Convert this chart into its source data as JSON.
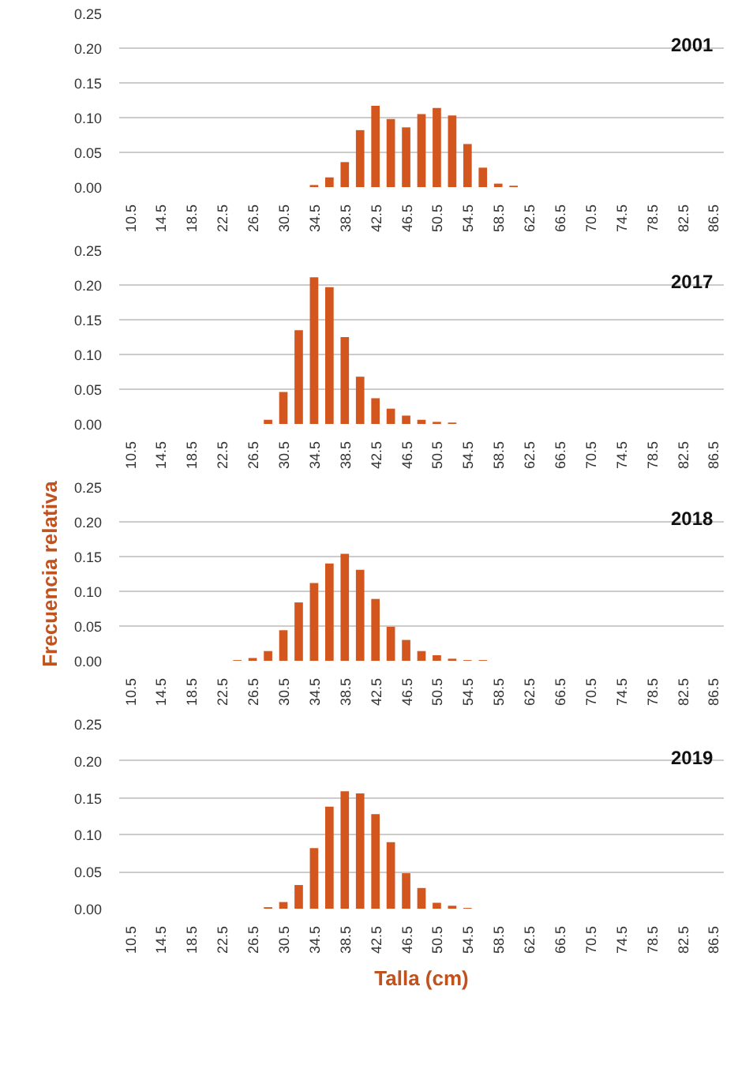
{
  "chart_data": [
    {
      "type": "bar",
      "annotations": [
        "2001"
      ],
      "categories": [
        "10.5",
        null,
        "14.5",
        null,
        "18.5",
        null,
        "22.5",
        null,
        "26.5",
        null,
        "30.5",
        null,
        "34.5",
        null,
        "38.5",
        null,
        "42.5",
        null,
        "46.5",
        null,
        "50.5",
        null,
        "54.5",
        null,
        "58.5",
        null,
        "62.5",
        null,
        "66.5",
        null,
        "70.5",
        null,
        "74.5",
        null,
        "78.5",
        null,
        "82.5",
        null,
        "86.5"
      ],
      "series": [
        {
          "color": "#d4561f",
          "values": [
            null,
            null,
            null,
            null,
            null,
            null,
            null,
            null,
            null,
            null,
            null,
            null,
            0.003,
            0.014,
            0.036,
            0.082,
            0.117,
            0.098,
            0.086,
            0.105,
            0.114,
            0.103,
            0.062,
            0.028,
            0.005,
            0.002,
            null,
            null,
            null,
            null,
            null,
            null,
            null,
            null,
            null,
            null,
            null,
            null,
            null
          ]
        }
      ],
      "ylim": [
        0,
        0.25
      ],
      "yticks": [
        {
          "value": 0,
          "label": "0.00"
        },
        {
          "value": 0.05,
          "label": "0.05"
        },
        {
          "value": 0.1,
          "label": "0.10"
        },
        {
          "value": 0.15,
          "label": "0.15"
        },
        {
          "value": 0.2,
          "label": "0.20"
        },
        {
          "value": 0.25,
          "label": "0.25"
        }
      ],
      "grid": "y"
    },
    {
      "type": "bar",
      "annotations": [
        "2017"
      ],
      "categories": [
        "10.5",
        null,
        "14.5",
        null,
        "18.5",
        null,
        "22.5",
        null,
        "26.5",
        null,
        "30.5",
        null,
        "34.5",
        null,
        "38.5",
        null,
        "42.5",
        null,
        "46.5",
        null,
        "50.5",
        null,
        "54.5",
        null,
        "58.5",
        null,
        "62.5",
        null,
        "66.5",
        null,
        "70.5",
        null,
        "74.5",
        null,
        "78.5",
        null,
        "82.5",
        null,
        "86.5"
      ],
      "series": [
        {
          "color": "#d4561f",
          "values": [
            null,
            null,
            null,
            null,
            null,
            null,
            null,
            null,
            null,
            0.006,
            0.046,
            0.135,
            0.211,
            0.197,
            0.125,
            0.068,
            0.037,
            0.022,
            0.012,
            0.006,
            0.003,
            0.002,
            null,
            null,
            null,
            null,
            null,
            null,
            null,
            null,
            null,
            null,
            null,
            null,
            null,
            null,
            null,
            null,
            null
          ]
        }
      ],
      "ylim": [
        0,
        0.25
      ],
      "yticks": [
        {
          "value": 0,
          "label": "0.00"
        },
        {
          "value": 0.05,
          "label": "0.05"
        },
        {
          "value": 0.1,
          "label": "0.10"
        },
        {
          "value": 0.15,
          "label": "0.15"
        },
        {
          "value": 0.2,
          "label": "0.20"
        },
        {
          "value": 0.25,
          "label": "0.25"
        }
      ],
      "grid": "y"
    },
    {
      "type": "bar",
      "annotations": [
        "2018"
      ],
      "ylabel": "Frecuencia relativa",
      "categories": [
        "10.5",
        null,
        "14.5",
        null,
        "18.5",
        null,
        "22.5",
        null,
        "26.5",
        null,
        "30.5",
        null,
        "34.5",
        null,
        "38.5",
        null,
        "42.5",
        null,
        "46.5",
        null,
        "50.5",
        null,
        "54.5",
        null,
        "58.5",
        null,
        "62.5",
        null,
        "66.5",
        null,
        "70.5",
        null,
        "74.5",
        null,
        "78.5",
        null,
        "82.5",
        null,
        "86.5"
      ],
      "series": [
        {
          "color": "#d4561f",
          "values": [
            null,
            null,
            null,
            null,
            null,
            null,
            null,
            0.001,
            0.004,
            0.014,
            0.044,
            0.084,
            0.112,
            0.14,
            0.154,
            0.131,
            0.089,
            0.049,
            0.03,
            0.014,
            0.008,
            0.003,
            0.001,
            0.001,
            null,
            null,
            null,
            null,
            null,
            null,
            null,
            null,
            null,
            null,
            null,
            null,
            null,
            null,
            null
          ]
        }
      ],
      "ylim": [
        0,
        0.25
      ],
      "yticks": [
        {
          "value": 0,
          "label": "0.00"
        },
        {
          "value": 0.05,
          "label": "0.05"
        },
        {
          "value": 0.1,
          "label": "0.10"
        },
        {
          "value": 0.15,
          "label": "0.15"
        },
        {
          "value": 0.2,
          "label": "0.20"
        },
        {
          "value": 0.25,
          "label": "0.25"
        }
      ],
      "grid": "y"
    },
    {
      "type": "bar",
      "annotations": [
        "2019"
      ],
      "xlabel": "Talla (cm)",
      "categories": [
        "10.5",
        null,
        "14.5",
        null,
        "18.5",
        null,
        "22.5",
        null,
        "26.5",
        null,
        "30.5",
        null,
        "34.5",
        null,
        "38.5",
        null,
        "42.5",
        null,
        "46.5",
        null,
        "50.5",
        null,
        "54.5",
        null,
        "58.5",
        null,
        "62.5",
        null,
        "66.5",
        null,
        "70.5",
        null,
        "74.5",
        null,
        "78.5",
        null,
        "82.5",
        null,
        "86.5"
      ],
      "series": [
        {
          "color": "#d4561f",
          "values": [
            null,
            null,
            null,
            null,
            null,
            null,
            null,
            null,
            null,
            0.002,
            0.009,
            0.032,
            0.082,
            0.138,
            0.159,
            0.156,
            0.128,
            0.09,
            0.048,
            0.028,
            0.008,
            0.004,
            0.001,
            null,
            null,
            null,
            null,
            null,
            null,
            null,
            null,
            null,
            null,
            null,
            null,
            null,
            null,
            null,
            null
          ]
        }
      ],
      "ylim": [
        0,
        0.25
      ],
      "yticks": [
        {
          "value": 0,
          "label": "0.00"
        },
        {
          "value": 0.05,
          "label": "0.05"
        },
        {
          "value": 0.1,
          "label": "0.10"
        },
        {
          "value": 0.15,
          "label": "0.15"
        },
        {
          "value": 0.2,
          "label": "0.20"
        },
        {
          "value": 0.25,
          "label": "0.25"
        }
      ],
      "grid": "y"
    }
  ]
}
